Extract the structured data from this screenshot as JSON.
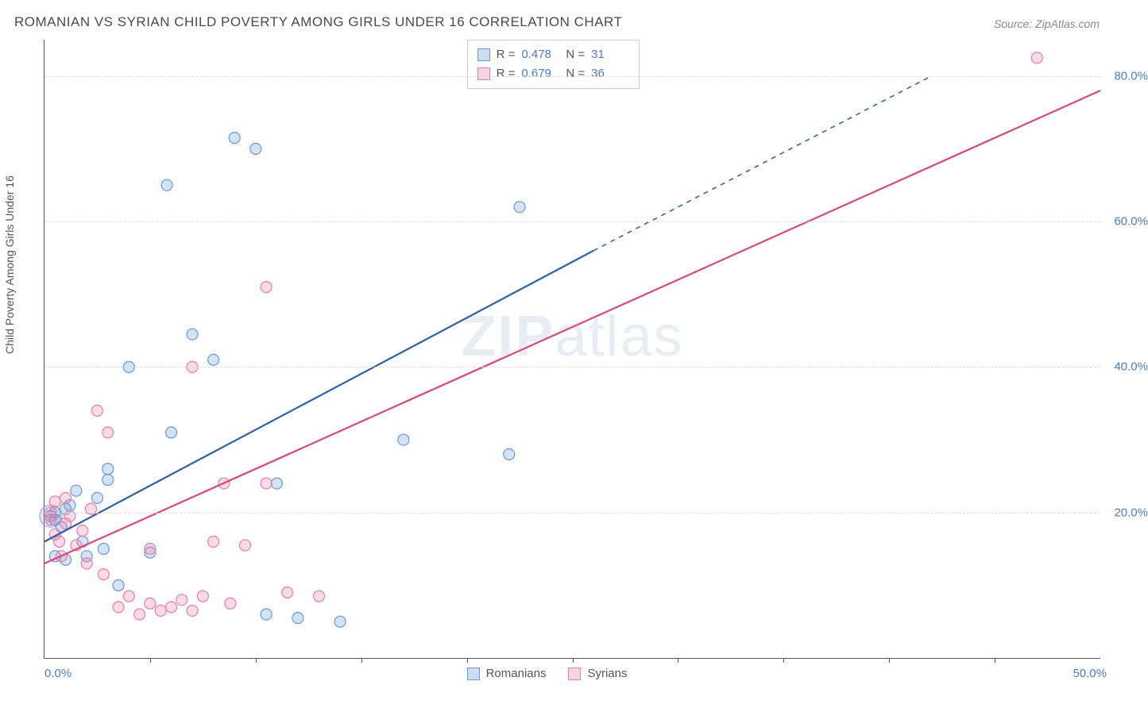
{
  "title": "ROMANIAN VS SYRIAN CHILD POVERTY AMONG GIRLS UNDER 16 CORRELATION CHART",
  "source": "Source: ZipAtlas.com",
  "watermark": "ZIPatlas",
  "ylabel": "Child Poverty Among Girls Under 16",
  "chart": {
    "type": "scatter",
    "background_color": "#ffffff",
    "grid_color": "#dddddd",
    "axis_color": "#555555",
    "tick_color": "#4a7bc8",
    "xlim": [
      0,
      50
    ],
    "ylim": [
      0,
      85
    ],
    "xticks": [
      0,
      50
    ],
    "xtick_labels": [
      "0.0%",
      "50.0%"
    ],
    "xtick_minor": [
      5,
      10,
      15,
      20,
      25,
      30,
      35,
      40,
      45
    ],
    "yticks": [
      20,
      40,
      60,
      80
    ],
    "ytick_labels": [
      "20.0%",
      "40.0%",
      "60.0%",
      "80.0%"
    ],
    "marker_radius": 7,
    "marker_stroke_width": 1.2,
    "marker_fill_opacity": 0.28,
    "line_width": 2.2,
    "series": [
      {
        "name": "Romanians",
        "color": "#6699d8",
        "line_color": "#2b5fa8",
        "R": "0.478",
        "N": "31",
        "points": [
          [
            0.5,
            19
          ],
          [
            0.5,
            14
          ],
          [
            0.5,
            20
          ],
          [
            1,
            13.5
          ],
          [
            1,
            20.5
          ],
          [
            1.5,
            23
          ],
          [
            2,
            14
          ],
          [
            2.5,
            22
          ],
          [
            2.8,
            15
          ],
          [
            3,
            24.5
          ],
          [
            3,
            26
          ],
          [
            3.5,
            10
          ],
          [
            4,
            40
          ],
          [
            5,
            14.5
          ],
          [
            5.8,
            65
          ],
          [
            6,
            31
          ],
          [
            7,
            44.5
          ],
          [
            8,
            41
          ],
          [
            9,
            71.5
          ],
          [
            10,
            70
          ],
          [
            10.5,
            6
          ],
          [
            11,
            24
          ],
          [
            12,
            5.5
          ],
          [
            14,
            5
          ],
          [
            17,
            30
          ],
          [
            22,
            28
          ],
          [
            22.5,
            62
          ],
          [
            0.3,
            19.5
          ],
          [
            0.8,
            18
          ],
          [
            1.2,
            21
          ],
          [
            1.8,
            16
          ]
        ],
        "trend": {
          "x1": 0,
          "y1": 16,
          "x2": 26,
          "y2": 56,
          "dash_to_x": 42,
          "dash_to_y": 80
        }
      },
      {
        "name": "Syrians",
        "color": "#e87fa0",
        "line_color": "#d84878",
        "R": "0.679",
        "N": "36",
        "points": [
          [
            0.3,
            20
          ],
          [
            0.5,
            17
          ],
          [
            0.5,
            21.5
          ],
          [
            0.8,
            14
          ],
          [
            1,
            18.5
          ],
          [
            1,
            22
          ],
          [
            1.5,
            15.5
          ],
          [
            2,
            13
          ],
          [
            2.5,
            34
          ],
          [
            2.8,
            11.5
          ],
          [
            3,
            31
          ],
          [
            3.5,
            7
          ],
          [
            4,
            8.5
          ],
          [
            4.5,
            6
          ],
          [
            5,
            7.5
          ],
          [
            5,
            15
          ],
          [
            5.5,
            6.5
          ],
          [
            6,
            7
          ],
          [
            6.5,
            8
          ],
          [
            7,
            6.5
          ],
          [
            7,
            40
          ],
          [
            7.5,
            8.5
          ],
          [
            8,
            16
          ],
          [
            8.5,
            24
          ],
          [
            8.8,
            7.5
          ],
          [
            9.5,
            15.5
          ],
          [
            10.5,
            24
          ],
          [
            10.5,
            51
          ],
          [
            11.5,
            9
          ],
          [
            13,
            8.5
          ],
          [
            0.3,
            19
          ],
          [
            1.2,
            19.5
          ],
          [
            1.8,
            17.5
          ],
          [
            2.2,
            20.5
          ],
          [
            47,
            82.5
          ],
          [
            0.7,
            16
          ]
        ],
        "trend": {
          "x1": 0,
          "y1": 13,
          "x2": 50,
          "y2": 78
        }
      }
    ],
    "extra_markers": [
      {
        "x": 0.3,
        "y": 19.5,
        "r": 14,
        "color": "#9999cc"
      }
    ]
  },
  "legend_bottom": [
    "Romanians",
    "Syrians"
  ]
}
